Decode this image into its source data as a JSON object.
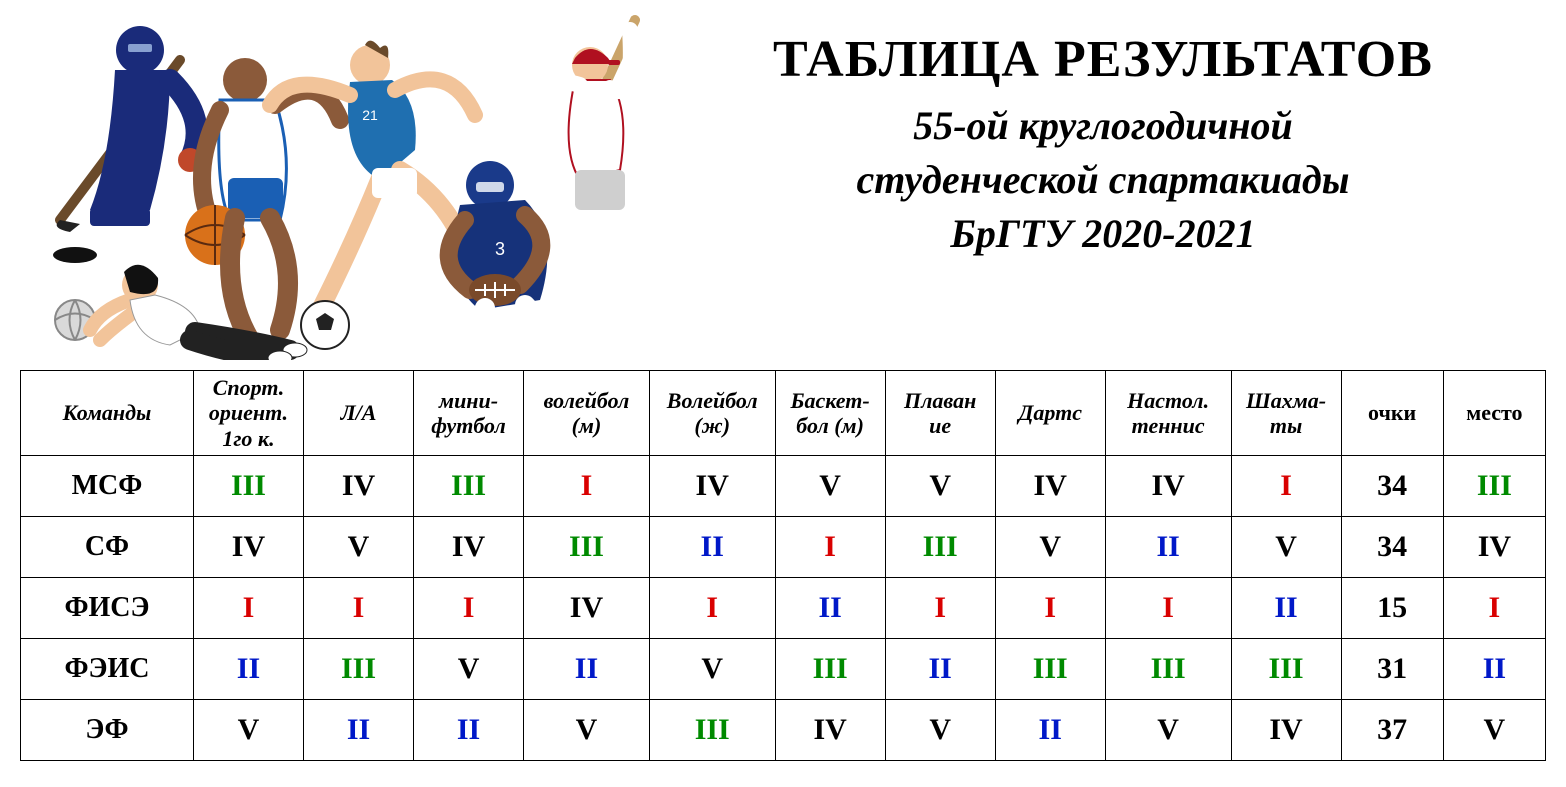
{
  "title": {
    "main": "ТАБЛИЦА РЕЗУЛЬТАТОВ",
    "sub_line1": "55-ой круглогодичной",
    "sub_line2": "студенческой спартакиады",
    "sub_line3": "БрГТУ 2020-2021"
  },
  "colors": {
    "I": "#d90000",
    "II": "#0018c8",
    "III": "#008a00",
    "IV": "#000000",
    "V": "#000000",
    "black": "#000000"
  },
  "illustration": {
    "hockey": {
      "jersey": "#1a2b7a",
      "stick": "#6a4a2a",
      "skin": "#f2c49a"
    },
    "basket": {
      "jersey": "#ffffff",
      "shorts": "#1a5fb4",
      "ball": "#d9711a",
      "skin": "#8b5a3a"
    },
    "soccer": {
      "jersey": "#1f6fb0",
      "shorts": "#ffffff",
      "skin": "#f2c49a",
      "ball_dark": "#222222"
    },
    "baseball": {
      "jersey": "#ffffff",
      "cap": "#b01020",
      "pants": "#cfcfcf",
      "skin": "#f2c49a"
    },
    "amfoot": {
      "jersey": "#16327a",
      "helmet": "#1a3a8a",
      "pants": "#ffffff",
      "ball": "#7a4a2a",
      "skin": "#8b5a3a"
    },
    "volley": {
      "shirt": "#ffffff",
      "pants": "#222222",
      "ball": "#d9d9d9",
      "skin": "#f2c49a",
      "hair": "#111111"
    },
    "puck": "#111111"
  },
  "table": {
    "columns": [
      "Команды",
      "Спорт. ориент. 1го к.",
      "Л/А",
      "мини-футбол",
      "волейбол (м)",
      "Волейбол (ж)",
      "Баскет-бол (м)",
      "Плаван ие",
      "Дартс",
      "Настол. теннис",
      "Шахма-ты",
      "очки",
      "место"
    ],
    "column_is_italic": [
      true,
      true,
      true,
      true,
      true,
      true,
      true,
      true,
      true,
      true,
      true,
      false,
      false
    ],
    "rows": [
      {
        "team": "МСФ",
        "cells": [
          "III",
          "IV",
          "III",
          "I",
          "IV",
          "V",
          "V",
          "IV",
          "IV",
          "I"
        ],
        "points": "34",
        "place": "III"
      },
      {
        "team": "СФ",
        "cells": [
          "IV",
          "V",
          "IV",
          "III",
          "II",
          "I",
          "III",
          "V",
          "II",
          "V"
        ],
        "points": "34",
        "place": "IV"
      },
      {
        "team": "ФИСЭ",
        "cells": [
          "I",
          "I",
          "I",
          "IV",
          "I",
          "II",
          "I",
          "I",
          "I",
          "II"
        ],
        "points": "15",
        "place": "I"
      },
      {
        "team": "ФЭИС",
        "cells": [
          "II",
          "III",
          "V",
          "II",
          "V",
          "III",
          "II",
          "III",
          "III",
          "III"
        ],
        "points": "31",
        "place": "II"
      },
      {
        "team": "ЭФ",
        "cells": [
          "V",
          "II",
          "II",
          "V",
          "III",
          "IV",
          "V",
          "II",
          "V",
          "IV"
        ],
        "points": "37",
        "place": "V"
      }
    ]
  }
}
